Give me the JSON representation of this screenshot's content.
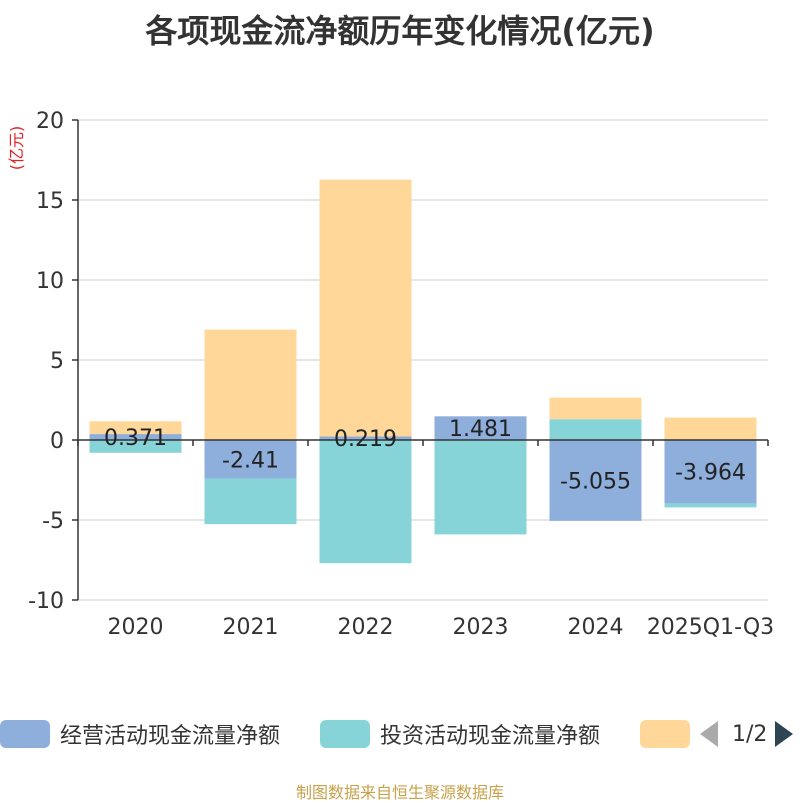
{
  "chart_data": {
    "type": "bar",
    "stacked": true,
    "title": "各项现金流净额历年变化情况(亿元)",
    "ylabel": "(亿元)",
    "ylim": [
      -10,
      20
    ],
    "yticks": [
      20,
      15,
      10,
      5,
      0,
      -5,
      -10
    ],
    "categories": [
      "2020",
      "2021",
      "2022",
      "2023",
      "2024",
      "2025Q1-Q3"
    ],
    "series": [
      {
        "name": "经营活动现金流量净额",
        "color": "#8eaedc",
        "values": [
          0.371,
          -2.41,
          0.219,
          1.481,
          -5.055,
          -3.964
        ],
        "labels": [
          "0.371",
          "-2.41",
          "0.219",
          "1.481",
          "-5.055",
          "-3.964"
        ]
      },
      {
        "name": "投资活动现金流量净额",
        "color": "#87d4d8",
        "values": [
          -0.8,
          -2.85,
          -7.7,
          -5.9,
          1.3,
          -0.25
        ]
      },
      {
        "name": "",
        "color": "#ffd799",
        "values": [
          0.8,
          6.9,
          16.05,
          0.0,
          1.35,
          1.4
        ]
      }
    ],
    "legend": {
      "page": "1/2"
    }
  },
  "source_note": "制图数据来自恒生聚源数据库"
}
